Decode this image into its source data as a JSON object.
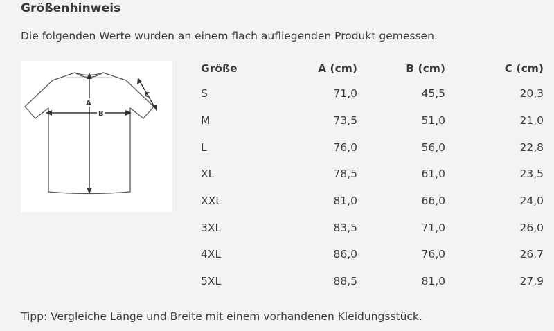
{
  "heading": "Größenhinweis",
  "intro": "Die folgenden Werte wurden an einem flach aufliegenden Produkt gemessen.",
  "diagram": {
    "label_a": "A",
    "label_b": "B",
    "label_c": "C",
    "icon": "tshirt-measure-diagram"
  },
  "table": {
    "headers": [
      "Größe",
      "A (cm)",
      "B (cm)",
      "C (cm)"
    ],
    "rows": [
      [
        "S",
        "71,0",
        "45,5",
        "20,3"
      ],
      [
        "M",
        "73,5",
        "51,0",
        "21,0"
      ],
      [
        "L",
        "76,0",
        "56,0",
        "22,8"
      ],
      [
        "XL",
        "78,5",
        "61,0",
        "23,5"
      ],
      [
        "XXL",
        "81,0",
        "66,0",
        "24,0"
      ],
      [
        "3XL",
        "83,5",
        "71,0",
        "26,0"
      ],
      [
        "4XL",
        "86,0",
        "76,0",
        "26,7"
      ],
      [
        "5XL",
        "88,5",
        "81,0",
        "27,9"
      ]
    ]
  },
  "tip": "Tipp: Vergleiche Länge und Breite mit einem vorhandenen Kleidungsstück."
}
